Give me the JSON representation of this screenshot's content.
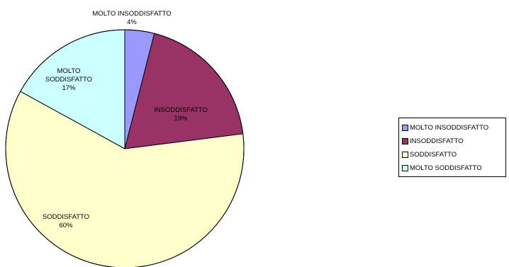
{
  "chart_data": {
    "type": "pie",
    "slices": [
      {
        "label": "MOLTO INSODDISFATTO",
        "value": 4,
        "display": "4%",
        "color": "#9999ff"
      },
      {
        "label": "INSODDISFATTO",
        "value": 19,
        "display": "19%",
        "color": "#993366"
      },
      {
        "label": "SODDISFATTO",
        "value": 60,
        "display": "60%",
        "color": "#ffffcc"
      },
      {
        "label": "MOLTO SODDISFATTO",
        "value": 17,
        "display": "17%",
        "color": "#ccffff"
      }
    ],
    "legend": {
      "position": "right",
      "entries": [
        "MOLTO INSODDISFATTO",
        "INSODDISFATTO",
        "SODDISFATTO",
        "MOLTO SODDISFATTO"
      ]
    }
  }
}
